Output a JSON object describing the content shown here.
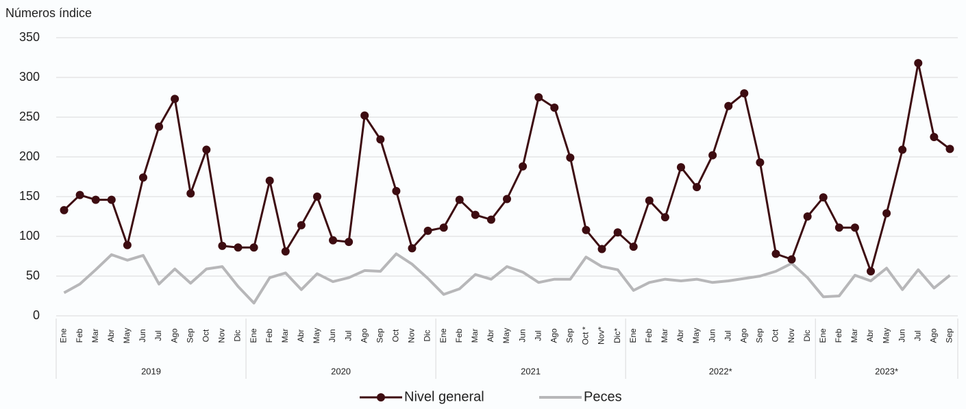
{
  "chart_data": {
    "type": "line",
    "y_axis_title": "Números índice",
    "ylim": [
      0,
      350
    ],
    "yticks": [
      0,
      50,
      100,
      150,
      200,
      250,
      300,
      350
    ],
    "grid": true,
    "legend_position": "bottom",
    "category_groups": [
      {
        "label": "2019",
        "categories": [
          "Ene",
          "Feb",
          "Mar",
          "Abr",
          "May",
          "Jun",
          "Jul",
          "Ago",
          "Sep",
          "Oct",
          "Nov",
          "Dic"
        ]
      },
      {
        "label": "2020",
        "categories": [
          "Ene",
          "Feb",
          "Mar",
          "Abr",
          "May",
          "Jun",
          "Jul",
          "Ago",
          "Sep",
          "Oct",
          "Nov",
          "Dic"
        ]
      },
      {
        "label": "2021",
        "categories": [
          "Ene",
          "Feb",
          "Mar",
          "Abr",
          "May",
          "Jun",
          "Jul",
          "Ago",
          "Sep",
          "Oct *",
          "Nov*",
          "Dic*"
        ]
      },
      {
        "label": "2022*",
        "categories": [
          "Ene",
          "Feb",
          "Mar",
          "Abr",
          "May",
          "Jun",
          "Jul",
          "Ago",
          "Sep",
          "Oct",
          "Nov",
          "Dic"
        ]
      },
      {
        "label": "2023*",
        "categories": [
          "Ene",
          "Feb",
          "Mar",
          "Abr",
          "May",
          "Jun",
          "Jul",
          "Ago",
          "Sep"
        ]
      }
    ],
    "series": [
      {
        "name": "Nivel general",
        "color": "#3d0c11",
        "markers": true,
        "values": [
          133,
          152,
          146,
          146,
          89,
          174,
          238,
          273,
          154,
          209,
          88,
          86,
          86,
          170,
          81,
          114,
          150,
          95,
          93,
          252,
          222,
          157,
          85,
          107,
          111,
          146,
          127,
          121,
          147,
          188,
          275,
          262,
          199,
          108,
          84,
          105,
          87,
          145,
          124,
          187,
          162,
          202,
          264,
          280,
          193,
          78,
          71,
          125,
          149,
          111,
          111,
          56,
          129,
          209,
          318,
          225,
          210
        ]
      },
      {
        "name": "Peces",
        "color": "#b7b7b9",
        "markers": false,
        "values": [
          29,
          40,
          58,
          77,
          70,
          76,
          40,
          59,
          41,
          59,
          62,
          37,
          16,
          48,
          54,
          33,
          53,
          43,
          48,
          57,
          56,
          78,
          65,
          47,
          27,
          34,
          52,
          46,
          62,
          55,
          42,
          46,
          46,
          74,
          62,
          58,
          32,
          42,
          46,
          44,
          46,
          42,
          44,
          47,
          50,
          56,
          66,
          48,
          24,
          25,
          51,
          44,
          60,
          33,
          58,
          35,
          51
        ]
      }
    ]
  }
}
